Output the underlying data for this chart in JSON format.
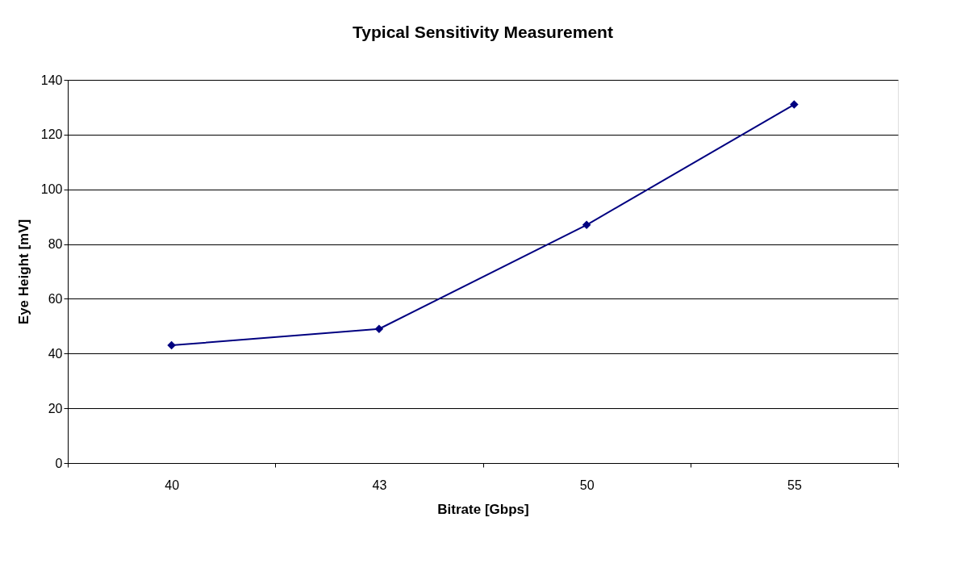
{
  "chart_data": {
    "type": "line",
    "title": "Typical Sensitivity Measurement",
    "xlabel": "Bitrate [Gbps]",
    "ylabel": "Eye Height [mV]",
    "categories": [
      "40",
      "43",
      "50",
      "55"
    ],
    "series": [
      {
        "color": "#000080",
        "values": [
          43,
          49,
          87,
          131
        ]
      }
    ],
    "ylim": [
      0,
      140
    ],
    "yticks": [
      0,
      20,
      40,
      60,
      80,
      100,
      120,
      140
    ],
    "grid": "y",
    "marker": "diamond",
    "line_style": "solid"
  }
}
